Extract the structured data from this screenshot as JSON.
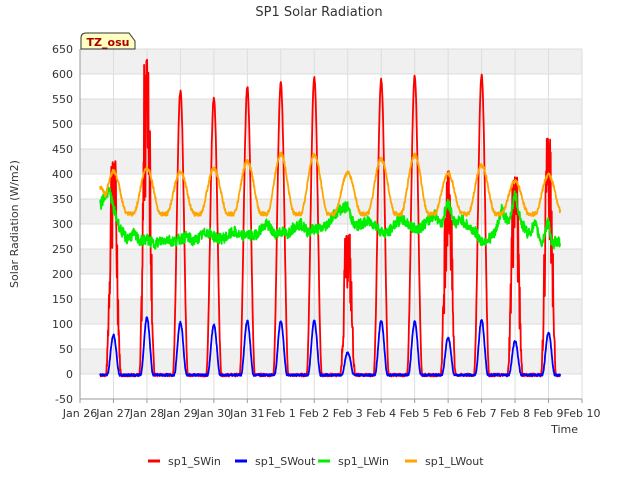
{
  "chart_data": {
    "type": "line",
    "title": "SP1 Solar Radiation",
    "xlabel": "Time",
    "ylabel": "Solar Radiation (W/m2)",
    "ylim": [
      -50,
      650
    ],
    "yticks": [
      -50,
      0,
      50,
      100,
      150,
      200,
      250,
      300,
      350,
      400,
      450,
      500,
      550,
      600,
      650
    ],
    "xlim": [
      0,
      15
    ],
    "xticks": [
      {
        "v": 0,
        "label": "Jan 26"
      },
      {
        "v": 1,
        "label": "Jan 27"
      },
      {
        "v": 2,
        "label": "Jan 28"
      },
      {
        "v": 3,
        "label": "Jan 29"
      },
      {
        "v": 4,
        "label": "Jan 30"
      },
      {
        "v": 5,
        "label": "Jan 31"
      },
      {
        "v": 6,
        "label": "Feb 1"
      },
      {
        "v": 7,
        "label": "Feb 2"
      },
      {
        "v": 8,
        "label": "Feb 3"
      },
      {
        "v": 9,
        "label": "Feb 4"
      },
      {
        "v": 10,
        "label": "Feb 5"
      },
      {
        "v": 11,
        "label": "Feb 6"
      },
      {
        "v": 12,
        "label": "Feb 7"
      },
      {
        "v": 13,
        "label": "Feb 8"
      },
      {
        "v": 14,
        "label": "Feb 9"
      },
      {
        "v": 15,
        "label": "Feb 10"
      }
    ],
    "grid": true,
    "annotation": "TZ_osu",
    "legend_position": "bottom",
    "x_data_start": 0.6,
    "x_data_end": 14.35,
    "series": [
      {
        "name": "sp1_SWin",
        "color": "#ff0000",
        "days": [
          {
            "day": 1,
            "peak": 425,
            "noisy": true
          },
          {
            "day": 2,
            "peak": 630,
            "noisy": true
          },
          {
            "day": 3,
            "peak": 568,
            "noisy": false
          },
          {
            "day": 4,
            "peak": 555,
            "noisy": false
          },
          {
            "day": 5,
            "peak": 577,
            "noisy": false
          },
          {
            "day": 6,
            "peak": 585,
            "noisy": false
          },
          {
            "day": 7,
            "peak": 595,
            "noisy": false
          },
          {
            "day": 8,
            "peak": 278,
            "noisy": true
          },
          {
            "day": 9,
            "peak": 590,
            "noisy": false
          },
          {
            "day": 10,
            "peak": 598,
            "noisy": false
          },
          {
            "day": 11,
            "peak": 408,
            "noisy": true
          },
          {
            "day": 12,
            "peak": 600,
            "noisy": false
          },
          {
            "day": 13,
            "peak": 395,
            "noisy": true
          },
          {
            "day": 14,
            "peak": 470,
            "noisy": true
          }
        ]
      },
      {
        "name": "sp1_SWout",
        "color": "#0000ff",
        "days": [
          {
            "day": 1,
            "peak": 80
          },
          {
            "day": 2,
            "peak": 115
          },
          {
            "day": 3,
            "peak": 105
          },
          {
            "day": 4,
            "peak": 100
          },
          {
            "day": 5,
            "peak": 108
          },
          {
            "day": 6,
            "peak": 107
          },
          {
            "day": 7,
            "peak": 108
          },
          {
            "day": 8,
            "peak": 45
          },
          {
            "day": 9,
            "peak": 108
          },
          {
            "day": 10,
            "peak": 106
          },
          {
            "day": 11,
            "peak": 75
          },
          {
            "day": 12,
            "peak": 110
          },
          {
            "day": 13,
            "peak": 68
          },
          {
            "day": 14,
            "peak": 85
          }
        ]
      },
      {
        "name": "sp1_LWin",
        "color": "#00ee00",
        "points": [
          [
            0.6,
            335
          ],
          [
            0.75,
            360
          ],
          [
            0.9,
            365
          ],
          [
            1.0,
            330
          ],
          [
            1.2,
            290
          ],
          [
            1.4,
            270
          ],
          [
            1.6,
            280
          ],
          [
            1.8,
            265
          ],
          [
            2.0,
            270
          ],
          [
            2.2,
            260
          ],
          [
            2.4,
            265
          ],
          [
            2.6,
            270
          ],
          [
            2.8,
            265
          ],
          [
            3.0,
            270
          ],
          [
            3.2,
            275
          ],
          [
            3.4,
            265
          ],
          [
            3.6,
            275
          ],
          [
            3.8,
            285
          ],
          [
            4.0,
            275
          ],
          [
            4.2,
            270
          ],
          [
            4.4,
            275
          ],
          [
            4.6,
            285
          ],
          [
            4.8,
            275
          ],
          [
            5.0,
            280
          ],
          [
            5.2,
            275
          ],
          [
            5.4,
            290
          ],
          [
            5.6,
            300
          ],
          [
            5.8,
            280
          ],
          [
            6.0,
            285
          ],
          [
            6.2,
            280
          ],
          [
            6.4,
            295
          ],
          [
            6.6,
            300
          ],
          [
            6.8,
            285
          ],
          [
            7.0,
            290
          ],
          [
            7.2,
            290
          ],
          [
            7.4,
            300
          ],
          [
            7.6,
            320
          ],
          [
            7.8,
            330
          ],
          [
            8.0,
            335
          ],
          [
            8.2,
            295
          ],
          [
            8.4,
            300
          ],
          [
            8.6,
            305
          ],
          [
            8.8,
            300
          ],
          [
            9.0,
            285
          ],
          [
            9.2,
            280
          ],
          [
            9.4,
            300
          ],
          [
            9.6,
            310
          ],
          [
            9.8,
            300
          ],
          [
            10.0,
            290
          ],
          [
            10.2,
            295
          ],
          [
            10.4,
            305
          ],
          [
            10.6,
            320
          ],
          [
            10.8,
            300
          ],
          [
            11.0,
            345
          ],
          [
            11.2,
            300
          ],
          [
            11.4,
            310
          ],
          [
            11.6,
            295
          ],
          [
            11.8,
            285
          ],
          [
            12.0,
            265
          ],
          [
            12.2,
            270
          ],
          [
            12.4,
            280
          ],
          [
            12.6,
            330
          ],
          [
            12.8,
            300
          ],
          [
            13.0,
            360
          ],
          [
            13.2,
            300
          ],
          [
            13.4,
            280
          ],
          [
            13.6,
            300
          ],
          [
            13.8,
            260
          ],
          [
            14.0,
            310
          ],
          [
            14.1,
            255
          ],
          [
            14.2,
            265
          ],
          [
            14.35,
            265
          ]
        ]
      },
      {
        "name": "sp1_LWout",
        "color": "#ffa500",
        "night": 320,
        "days": [
          {
            "day": 0.6,
            "peak": 372
          },
          {
            "day": 1,
            "peak": 405
          },
          {
            "day": 2,
            "peak": 412
          },
          {
            "day": 3,
            "peak": 405
          },
          {
            "day": 4,
            "peak": 410
          },
          {
            "day": 5,
            "peak": 425
          },
          {
            "day": 6,
            "peak": 440
          },
          {
            "day": 7,
            "peak": 438
          },
          {
            "day": 8,
            "peak": 402
          },
          {
            "day": 9,
            "peak": 430
          },
          {
            "day": 10,
            "peak": 438
          },
          {
            "day": 11,
            "peak": 400
          },
          {
            "day": 12,
            "peak": 418
          },
          {
            "day": 13,
            "peak": 385
          },
          {
            "day": 14,
            "peak": 398
          }
        ]
      }
    ]
  }
}
